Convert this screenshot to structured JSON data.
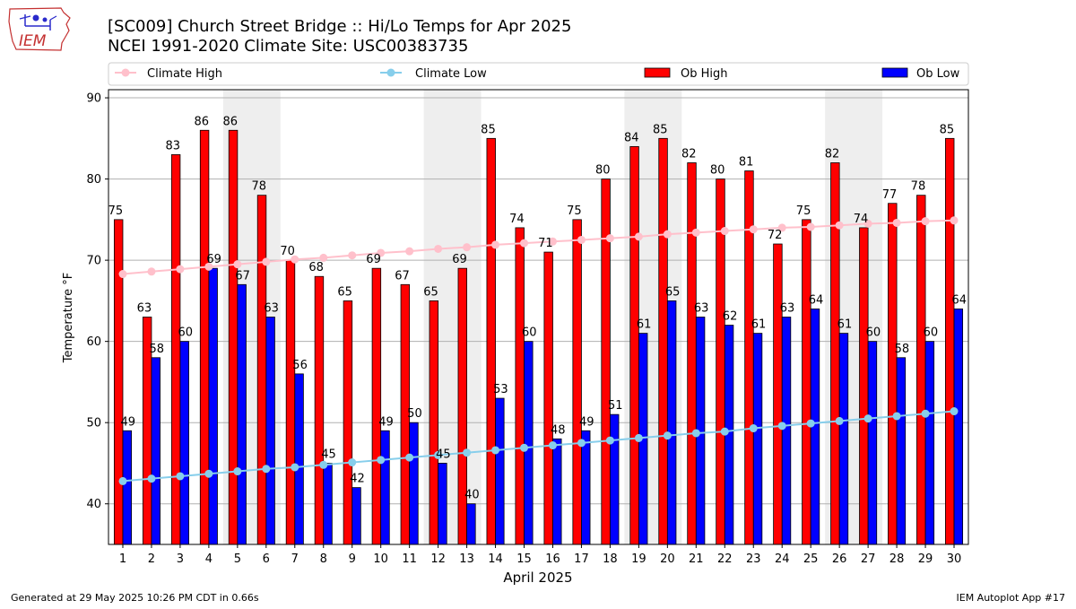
{
  "header": {
    "logo_text": "IEM",
    "title_line1": "[SC009] Church Street Bridge  :: Hi/Lo Temps for Apr 2025",
    "title_line2": "NCEI 1991-2020 Climate Site: USC00383735"
  },
  "legend": {
    "climate_high": "Climate High",
    "climate_low": "Climate Low",
    "ob_high": "Ob High",
    "ob_low": "Ob Low"
  },
  "colors": {
    "ob_high": "#ff0000",
    "ob_low": "#0000ff",
    "climate_high": "#ffc0cb",
    "climate_low": "#87ceeb",
    "weekend_shade": "#eeeeee",
    "grid": "#b0b0b0"
  },
  "footer": {
    "left": "Generated at 29 May 2025 10:26 PM CDT in 0.66s",
    "right": "IEM Autoplot App #17"
  },
  "chart_data": {
    "type": "bar",
    "title": "[SC009] Church Street Bridge  :: Hi/Lo Temps for Apr 2025",
    "subtitle": "NCEI 1991-2020 Climate Site: USC00383735",
    "xlabel": "April 2025",
    "ylabel": "Temperature $^\\circ$F",
    "ylim": [
      35,
      91
    ],
    "yticks": [
      40,
      50,
      60,
      70,
      80,
      90
    ],
    "grid": true,
    "legend_position": "top",
    "categories": [
      "1",
      "2",
      "3",
      "4",
      "5",
      "6",
      "7",
      "8",
      "9",
      "10",
      "11",
      "12",
      "13",
      "14",
      "15",
      "16",
      "17",
      "18",
      "19",
      "20",
      "21",
      "22",
      "23",
      "24",
      "25",
      "26",
      "27",
      "28",
      "29",
      "30"
    ],
    "shaded_days": [
      [
        5,
        6
      ],
      [
        12,
        13
      ],
      [
        19,
        20
      ],
      [
        26,
        27
      ]
    ],
    "series": [
      {
        "name": "Ob High",
        "kind": "bar",
        "labels": true,
        "values": [
          75,
          63,
          83,
          86,
          86,
          78,
          70,
          68,
          65,
          69,
          67,
          65,
          69,
          85,
          74,
          71,
          75,
          80,
          84,
          85,
          82,
          80,
          81,
          72,
          75,
          82,
          74,
          77,
          78,
          85
        ]
      },
      {
        "name": "Ob Low",
        "kind": "bar",
        "labels": true,
        "values": [
          49,
          58,
          60,
          69,
          67,
          63,
          56,
          45,
          42,
          49,
          50,
          45,
          40,
          53,
          60,
          48,
          49,
          51,
          61,
          65,
          63,
          62,
          61,
          63,
          64,
          61,
          60,
          58,
          60,
          64
        ]
      },
      {
        "name": "Climate High",
        "kind": "line",
        "values": [
          68.3,
          68.6,
          68.9,
          69.2,
          69.5,
          69.8,
          70.1,
          70.3,
          70.6,
          70.9,
          71.1,
          71.4,
          71.6,
          71.9,
          72.1,
          72.3,
          72.5,
          72.7,
          72.9,
          73.2,
          73.4,
          73.6,
          73.8,
          74.0,
          74.1,
          74.3,
          74.5,
          74.6,
          74.8,
          74.9
        ]
      },
      {
        "name": "Climate Low",
        "kind": "line",
        "values": [
          42.8,
          43.1,
          43.4,
          43.7,
          44.0,
          44.3,
          44.5,
          44.8,
          45.1,
          45.4,
          45.7,
          46.0,
          46.3,
          46.6,
          46.9,
          47.2,
          47.5,
          47.8,
          48.1,
          48.4,
          48.7,
          48.9,
          49.3,
          49.6,
          49.9,
          50.2,
          50.5,
          50.8,
          51.1,
          51.4
        ]
      }
    ]
  }
}
